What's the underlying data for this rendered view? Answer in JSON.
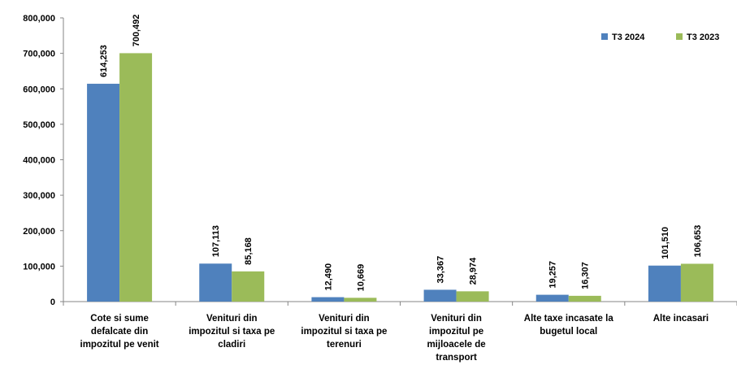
{
  "chart_data": {
    "type": "bar",
    "categories": [
      [
        "Cote si sume",
        "defalcate din",
        "impozitul pe venit"
      ],
      [
        "Venituri din",
        "impozitul si taxa pe",
        "cladiri"
      ],
      [
        "Venituri din",
        "impozitul si taxa pe",
        "terenuri"
      ],
      [
        "Venituri din",
        "impozitul pe",
        "mijloacele de",
        "transport"
      ],
      [
        "Alte taxe incasate la",
        "bugetul local"
      ],
      [
        "Alte incasari"
      ]
    ],
    "series": [
      {
        "name": "T3 2024",
        "color": "#4F81BD",
        "values": [
          614253,
          107113,
          12490,
          33367,
          19257,
          101510
        ]
      },
      {
        "name": "T3 2023",
        "color": "#9BBB59",
        "values": [
          700492,
          85168,
          10669,
          28974,
          16307,
          106653
        ]
      }
    ],
    "y_ticks": [
      "0",
      "100,000",
      "200,000",
      "300,000",
      "400,000",
      "500,000",
      "600,000",
      "700,000",
      "800,000"
    ],
    "ylim": [
      0,
      800000
    ],
    "legend_position": "top-right",
    "grid": false
  }
}
